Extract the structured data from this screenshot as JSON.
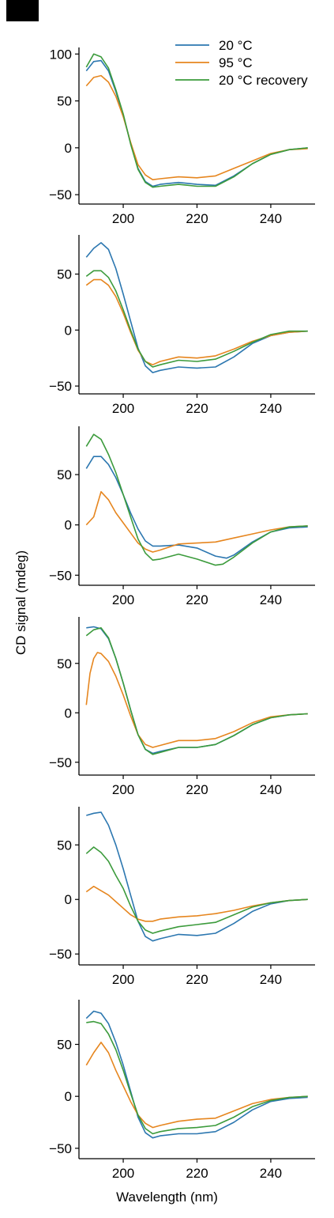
{
  "figure": {
    "panel_label": "",
    "ylabel": "CD signal (mdeg)",
    "xlabel": "Wavelength (nm)"
  },
  "legend": {
    "placement": "top-right",
    "entries": [
      {
        "label": "20 °C",
        "color": "#2c77b0"
      },
      {
        "label": "95 °C",
        "color": "#e6861f"
      },
      {
        "label": "20 °C recovery",
        "color": "#3c9b3c"
      }
    ]
  },
  "chart_data": [
    {
      "type": "line",
      "xlim": [
        188,
        252
      ],
      "ylim": [
        -60,
        107
      ],
      "xticks": [
        200,
        220,
        240
      ],
      "yticks": [
        -50,
        0,
        50,
        100
      ],
      "series": [
        {
          "name": "20 °C",
          "color": "#2c77b0",
          "x": [
            190,
            192,
            194,
            196,
            198,
            200,
            202,
            204,
            206,
            208,
            210,
            215,
            220,
            225,
            230,
            235,
            240,
            245,
            250
          ],
          "y": [
            82,
            92,
            93,
            82,
            60,
            35,
            5,
            -22,
            -36,
            -41,
            -39,
            -37,
            -39,
            -40,
            -30,
            -17,
            -7,
            -2,
            0
          ]
        },
        {
          "name": "95 °C",
          "color": "#e6861f",
          "x": [
            190,
            192,
            194,
            196,
            198,
            200,
            202,
            204,
            206,
            208,
            210,
            215,
            220,
            225,
            230,
            235,
            240,
            245,
            250
          ],
          "y": [
            66,
            75,
            77,
            70,
            55,
            33,
            6,
            -18,
            -29,
            -34,
            -33,
            -31,
            -32,
            -30,
            -22,
            -14,
            -6,
            -2,
            -1
          ]
        },
        {
          "name": "20 °C recovery",
          "color": "#3c9b3c",
          "x": [
            190,
            192,
            194,
            196,
            198,
            200,
            202,
            204,
            206,
            208,
            210,
            215,
            220,
            225,
            230,
            235,
            240,
            245,
            250
          ],
          "y": [
            86,
            100,
            97,
            85,
            62,
            36,
            4,
            -23,
            -37,
            -42,
            -41,
            -39,
            -41,
            -41,
            -31,
            -17,
            -7,
            -2,
            0
          ]
        }
      ]
    },
    {
      "type": "line",
      "xlim": [
        188,
        252
      ],
      "ylim": [
        -57,
        85
      ],
      "xticks": [
        200,
        220,
        240
      ],
      "yticks": [
        -50,
        0,
        50
      ],
      "series": [
        {
          "name": "20 °C",
          "color": "#2c77b0",
          "x": [
            190,
            192,
            194,
            196,
            198,
            200,
            202,
            204,
            206,
            208,
            210,
            215,
            220,
            225,
            230,
            235,
            240,
            245,
            250
          ],
          "y": [
            65,
            73,
            78,
            72,
            55,
            32,
            8,
            -16,
            -32,
            -38,
            -36,
            -33,
            -34,
            -33,
            -24,
            -12,
            -5,
            -2,
            -1
          ]
        },
        {
          "name": "95 °C",
          "color": "#e6861f",
          "x": [
            190,
            192,
            194,
            196,
            198,
            200,
            202,
            204,
            206,
            208,
            210,
            215,
            220,
            225,
            230,
            235,
            240,
            245,
            250
          ],
          "y": [
            40,
            45,
            45,
            40,
            30,
            15,
            -2,
            -18,
            -28,
            -31,
            -28,
            -24,
            -25,
            -23,
            -17,
            -10,
            -5,
            -2,
            -1
          ]
        },
        {
          "name": "20 °C recovery",
          "color": "#3c9b3c",
          "x": [
            190,
            192,
            194,
            196,
            198,
            200,
            202,
            204,
            206,
            208,
            210,
            215,
            220,
            225,
            230,
            235,
            240,
            245,
            250
          ],
          "y": [
            48,
            53,
            53,
            47,
            35,
            18,
            0,
            -17,
            -28,
            -33,
            -31,
            -27,
            -28,
            -26,
            -19,
            -11,
            -4,
            -1,
            -1
          ]
        }
      ]
    },
    {
      "type": "line",
      "xlim": [
        188,
        252
      ],
      "ylim": [
        -60,
        98
      ],
      "xticks": [
        200,
        220,
        240
      ],
      "yticks": [
        -50,
        0,
        50
      ],
      "series": [
        {
          "name": "20 °C",
          "color": "#2c77b0",
          "x": [
            190,
            192,
            194,
            196,
            198,
            200,
            202,
            204,
            206,
            208,
            210,
            215,
            220,
            225,
            228,
            230,
            235,
            240,
            245,
            250
          ],
          "y": [
            56,
            68,
            68,
            60,
            47,
            30,
            12,
            -4,
            -16,
            -21,
            -21,
            -20,
            -23,
            -31,
            -33,
            -30,
            -17,
            -7,
            -3,
            -2
          ]
        },
        {
          "name": "95 °C",
          "color": "#e6861f",
          "x": [
            190,
            192,
            194,
            196,
            198,
            200,
            202,
            204,
            206,
            208,
            210,
            215,
            220,
            225,
            230,
            235,
            240,
            245,
            250
          ],
          "y": [
            0,
            8,
            33,
            25,
            12,
            2,
            -8,
            -18,
            -24,
            -27,
            -25,
            -19,
            -18,
            -17,
            -13,
            -9,
            -5,
            -2,
            -1
          ]
        },
        {
          "name": "20 °C recovery",
          "color": "#3c9b3c",
          "x": [
            190,
            192,
            194,
            196,
            198,
            200,
            202,
            204,
            206,
            208,
            210,
            215,
            220,
            225,
            227,
            230,
            235,
            240,
            245,
            250
          ],
          "y": [
            78,
            90,
            85,
            70,
            52,
            30,
            8,
            -14,
            -28,
            -35,
            -34,
            -29,
            -34,
            -40,
            -39,
            -32,
            -18,
            -7,
            -2,
            -1
          ]
        }
      ]
    },
    {
      "type": "line",
      "xlim": [
        188,
        252
      ],
      "ylim": [
        -63,
        97
      ],
      "xticks": [
        200,
        220,
        240
      ],
      "yticks": [
        -50,
        0,
        50
      ],
      "series": [
        {
          "name": "20 °C",
          "color": "#2c77b0",
          "x": [
            190,
            192,
            194,
            196,
            198,
            200,
            202,
            204,
            206,
            208,
            210,
            215,
            220,
            225,
            230,
            235,
            240,
            245,
            250
          ],
          "y": [
            86,
            87,
            85,
            75,
            55,
            30,
            3,
            -22,
            -37,
            -41,
            -39,
            -35,
            -35,
            -32,
            -23,
            -12,
            -5,
            -2,
            -1
          ]
        },
        {
          "name": "95 °C",
          "color": "#e6861f",
          "x": [
            190,
            191,
            192,
            193,
            194,
            196,
            198,
            200,
            202,
            204,
            206,
            208,
            210,
            215,
            220,
            225,
            230,
            235,
            240,
            245,
            250
          ],
          "y": [
            8,
            40,
            55,
            61,
            60,
            52,
            37,
            18,
            -3,
            -22,
            -32,
            -35,
            -33,
            -28,
            -28,
            -26,
            -19,
            -10,
            -4,
            -2,
            -1
          ]
        },
        {
          "name": "20 °C recovery",
          "color": "#3c9b3c",
          "x": [
            190,
            192,
            194,
            196,
            198,
            200,
            202,
            204,
            206,
            208,
            210,
            215,
            220,
            225,
            230,
            235,
            240,
            245,
            250
          ],
          "y": [
            78,
            84,
            86,
            76,
            55,
            30,
            3,
            -22,
            -37,
            -42,
            -40,
            -35,
            -35,
            -32,
            -23,
            -12,
            -5,
            -2,
            -1
          ]
        }
      ]
    },
    {
      "type": "line",
      "xlim": [
        188,
        252
      ],
      "ylim": [
        -60,
        85
      ],
      "xticks": [
        200,
        220,
        240
      ],
      "yticks": [
        -50,
        0,
        50
      ],
      "series": [
        {
          "name": "20 °C",
          "color": "#2c77b0",
          "x": [
            190,
            192,
            194,
            196,
            198,
            200,
            202,
            204,
            206,
            208,
            210,
            215,
            220,
            225,
            230,
            235,
            240,
            245,
            250
          ],
          "y": [
            77,
            79,
            80,
            68,
            50,
            28,
            4,
            -20,
            -34,
            -38,
            -36,
            -32,
            -33,
            -31,
            -22,
            -11,
            -4,
            -1,
            0
          ]
        },
        {
          "name": "95 °C",
          "color": "#e6861f",
          "x": [
            190,
            192,
            194,
            196,
            198,
            200,
            202,
            204,
            206,
            208,
            210,
            215,
            220,
            225,
            230,
            235,
            240,
            245,
            250
          ],
          "y": [
            7,
            12,
            8,
            4,
            -2,
            -8,
            -14,
            -18,
            -20,
            -20,
            -18,
            -16,
            -15,
            -13,
            -10,
            -6,
            -3,
            -1,
            0
          ]
        },
        {
          "name": "20 °C recovery",
          "color": "#3c9b3c",
          "x": [
            190,
            192,
            194,
            196,
            198,
            200,
            202,
            204,
            206,
            208,
            210,
            215,
            220,
            225,
            230,
            235,
            240,
            245,
            250
          ],
          "y": [
            42,
            48,
            43,
            35,
            22,
            10,
            -6,
            -20,
            -28,
            -31,
            -29,
            -25,
            -23,
            -21,
            -14,
            -7,
            -3,
            -1,
            0
          ]
        }
      ]
    },
    {
      "type": "line",
      "xlim": [
        188,
        252
      ],
      "ylim": [
        -60,
        93
      ],
      "xticks": [
        200,
        220,
        240
      ],
      "yticks": [
        -50,
        0,
        50
      ],
      "series": [
        {
          "name": "20 °C",
          "color": "#2c77b0",
          "x": [
            190,
            192,
            194,
            196,
            198,
            200,
            202,
            204,
            206,
            208,
            210,
            215,
            220,
            225,
            230,
            235,
            240,
            245,
            250
          ],
          "y": [
            75,
            82,
            80,
            70,
            52,
            30,
            5,
            -20,
            -35,
            -40,
            -38,
            -36,
            -36,
            -34,
            -25,
            -13,
            -5,
            -2,
            -1
          ]
        },
        {
          "name": "95 °C",
          "color": "#e6861f",
          "x": [
            190,
            192,
            194,
            196,
            198,
            200,
            202,
            204,
            206,
            208,
            210,
            215,
            220,
            225,
            230,
            235,
            240,
            245,
            250
          ],
          "y": [
            30,
            42,
            52,
            42,
            25,
            10,
            -5,
            -18,
            -26,
            -30,
            -28,
            -24,
            -22,
            -21,
            -14,
            -7,
            -3,
            -1,
            0
          ]
        },
        {
          "name": "20 °C recovery",
          "color": "#3c9b3c",
          "x": [
            190,
            192,
            194,
            196,
            198,
            200,
            202,
            204,
            206,
            208,
            210,
            215,
            220,
            225,
            230,
            235,
            240,
            245,
            250
          ],
          "y": [
            71,
            72,
            70,
            60,
            45,
            25,
            3,
            -18,
            -31,
            -36,
            -34,
            -31,
            -30,
            -28,
            -20,
            -10,
            -4,
            -1,
            0
          ]
        }
      ]
    }
  ]
}
